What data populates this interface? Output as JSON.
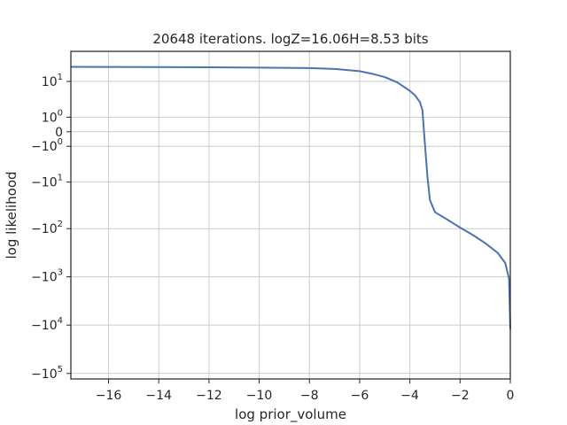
{
  "chart_data": {
    "type": "line",
    "title": "20648 iterations. logZ=16.06H=8.53 bits",
    "xlabel": "log prior_volume",
    "ylabel": "log likelihood",
    "xlim": [
      -17.5,
      0
    ],
    "x_ticks": [
      {
        "value": -16,
        "label": "−16"
      },
      {
        "value": -14,
        "label": "−14"
      },
      {
        "value": -12,
        "label": "−12"
      },
      {
        "value": -10,
        "label": "−10"
      },
      {
        "value": -8,
        "label": "−8"
      },
      {
        "value": -6,
        "label": "−6"
      },
      {
        "value": -4,
        "label": "−4"
      },
      {
        "value": -2,
        "label": "−2"
      },
      {
        "value": 0,
        "label": "0"
      }
    ],
    "y_scale": "symlog",
    "ylim": [
      -130000,
      45
    ],
    "y_ticks": [
      {
        "value": 10,
        "label": "10",
        "exp": "1"
      },
      {
        "value": 1,
        "label": "10",
        "exp": "0"
      },
      {
        "value": 0,
        "label": "0",
        "exp": ""
      },
      {
        "value": -1,
        "label": "−10",
        "exp": "0"
      },
      {
        "value": -10,
        "label": "−10",
        "exp": "1"
      },
      {
        "value": -100,
        "label": "−10",
        "exp": "2"
      },
      {
        "value": -1000,
        "label": "−10",
        "exp": "3"
      },
      {
        "value": -10000,
        "label": "−10",
        "exp": "4"
      },
      {
        "value": -100000,
        "label": "−10",
        "exp": "5"
      }
    ],
    "grid": true,
    "series": [
      {
        "color": "#4c72b0",
        "points": [
          [
            -17.5,
            21.0
          ],
          [
            -16,
            20.9
          ],
          [
            -14,
            20.8
          ],
          [
            -12,
            20.5
          ],
          [
            -10,
            20.2
          ],
          [
            -8,
            19.7
          ],
          [
            -7,
            18.9
          ],
          [
            -6,
            16.9
          ],
          [
            -5.5,
            14.8
          ],
          [
            -5,
            12.5
          ],
          [
            -4.5,
            9.5
          ],
          [
            -4,
            6.0
          ],
          [
            -3.8,
            4.7
          ],
          [
            -3.6,
            3.1
          ],
          [
            -3.5,
            1.8
          ],
          [
            -3.4,
            -0.8
          ],
          [
            -3.3,
            -7.5
          ],
          [
            -3.2,
            -25
          ],
          [
            -3.0,
            -45
          ],
          [
            -2.5,
            -65
          ],
          [
            -2.0,
            -95
          ],
          [
            -1.5,
            -135
          ],
          [
            -1.0,
            -200
          ],
          [
            -0.5,
            -320
          ],
          [
            -0.2,
            -520
          ],
          [
            -0.05,
            -1100
          ],
          [
            0.0,
            -12000
          ]
        ]
      }
    ]
  }
}
